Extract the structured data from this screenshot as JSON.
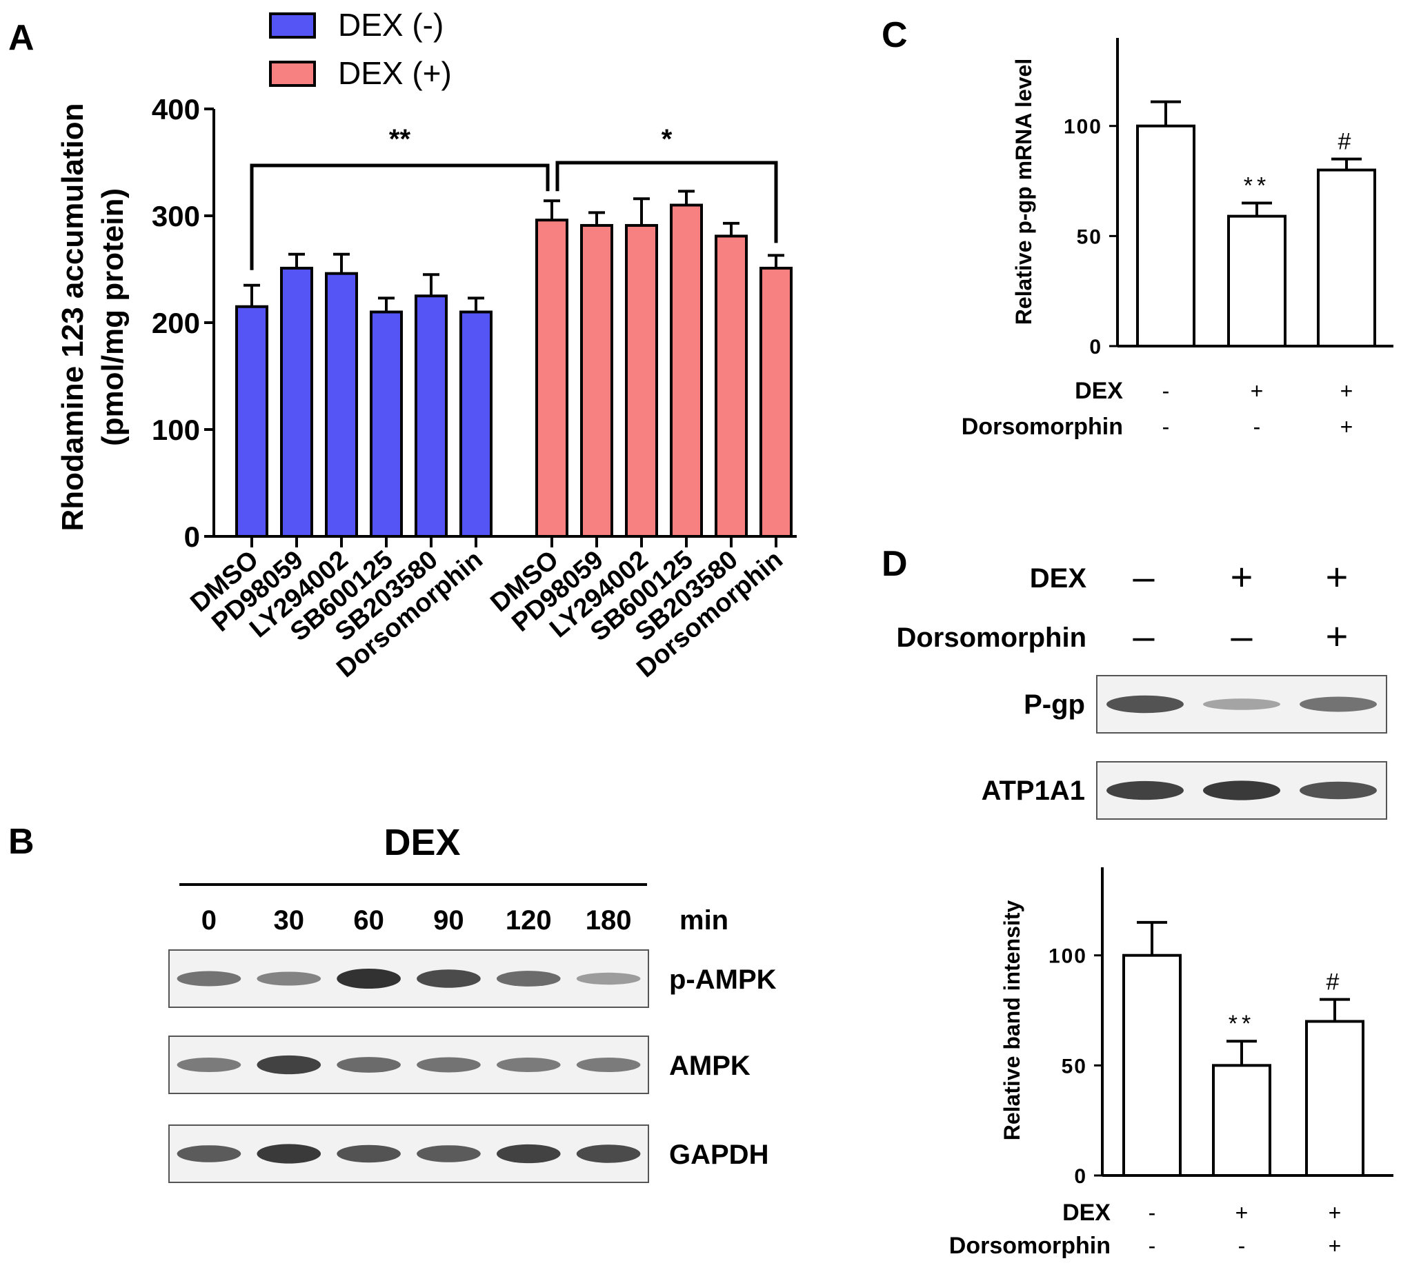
{
  "panels": {
    "A": {
      "letter": "A",
      "chart_data": {
        "type": "bar",
        "ylabel_line1": "Rhodamine 123 accumulation",
        "ylabel_line2": "(pmol/mg protein)",
        "ylim": [
          0,
          400
        ],
        "yticks": [
          0,
          100,
          200,
          300,
          400
        ],
        "categories": [
          "DMSO",
          "PD98059",
          "LY294002",
          "SB600125",
          "SB203580",
          "Dorsomorphin"
        ],
        "series": [
          {
            "name": "DEX (-)",
            "color": "#5555f5",
            "values": [
              215,
              251,
              246,
              210,
              225,
              210
            ],
            "errors": [
              20,
              13,
              18,
              13,
              20,
              13
            ]
          },
          {
            "name": "DEX (+)",
            "color": "#f78080",
            "values": [
              296,
              291,
              291,
              310,
              281,
              251
            ],
            "errors": [
              18,
              12,
              25,
              13,
              12,
              12
            ]
          }
        ],
        "legend_position": "top-left",
        "significance": [
          {
            "label": "**",
            "from": "DEX (-) DMSO",
            "to": "DEX (+) DMSO"
          },
          {
            "label": "*",
            "from": "DEX (+) DMSO",
            "to": "DEX (+) Dorsomorphin"
          }
        ]
      }
    },
    "B": {
      "letter": "B",
      "title": "DEX",
      "times": [
        "0",
        "30",
        "60",
        "90",
        "120",
        "180"
      ],
      "unit": "min",
      "rows": [
        {
          "label": "p-AMPK",
          "intensity": [
            0.55,
            0.45,
            0.95,
            0.8,
            0.6,
            0.3
          ]
        },
        {
          "label": "AMPK",
          "intensity": [
            0.5,
            0.85,
            0.6,
            0.55,
            0.5,
            0.5
          ]
        },
        {
          "label": "GAPDH",
          "intensity": [
            0.7,
            0.9,
            0.75,
            0.7,
            0.85,
            0.8
          ]
        }
      ]
    },
    "C": {
      "letter": "C",
      "chart_data": {
        "type": "bar",
        "ylabel": "Relative p-gp mRNA level",
        "ylim": [
          0,
          140
        ],
        "yticks": [
          0,
          50,
          100
        ],
        "values": [
          100,
          59,
          80
        ],
        "errors": [
          11,
          6,
          5
        ],
        "annotations": [
          "",
          "**",
          "#"
        ],
        "conditions": [
          {
            "label": "DEX",
            "signs": [
              "-",
              "+",
              "+"
            ]
          },
          {
            "label": "Dorsomorphin",
            "signs": [
              "-",
              "-",
              "+"
            ]
          }
        ]
      }
    },
    "D": {
      "letter": "D",
      "conditions": [
        {
          "label": "DEX",
          "signs": [
            "–",
            "+",
            "+"
          ]
        },
        {
          "label": "Dorsomorphin",
          "signs": [
            "–",
            "–",
            "+"
          ]
        }
      ],
      "blots": [
        {
          "label": "P-gp",
          "intensity": [
            0.75,
            0.25,
            0.55
          ]
        },
        {
          "label": "ATP1A1",
          "intensity": [
            0.85,
            0.9,
            0.75
          ]
        }
      ],
      "chart_data": {
        "type": "bar",
        "ylabel": "Relative band intensity",
        "ylim": [
          0,
          140
        ],
        "yticks": [
          0,
          50,
          100
        ],
        "values": [
          100,
          50,
          70
        ],
        "errors": [
          15,
          11,
          10
        ],
        "annotations": [
          "",
          "**",
          "#"
        ],
        "conditions": [
          {
            "label": "DEX",
            "signs": [
              "-",
              "+",
              "+"
            ]
          },
          {
            "label": "Dorsomorphin",
            "signs": [
              "-",
              "-",
              "+"
            ]
          }
        ]
      }
    }
  }
}
